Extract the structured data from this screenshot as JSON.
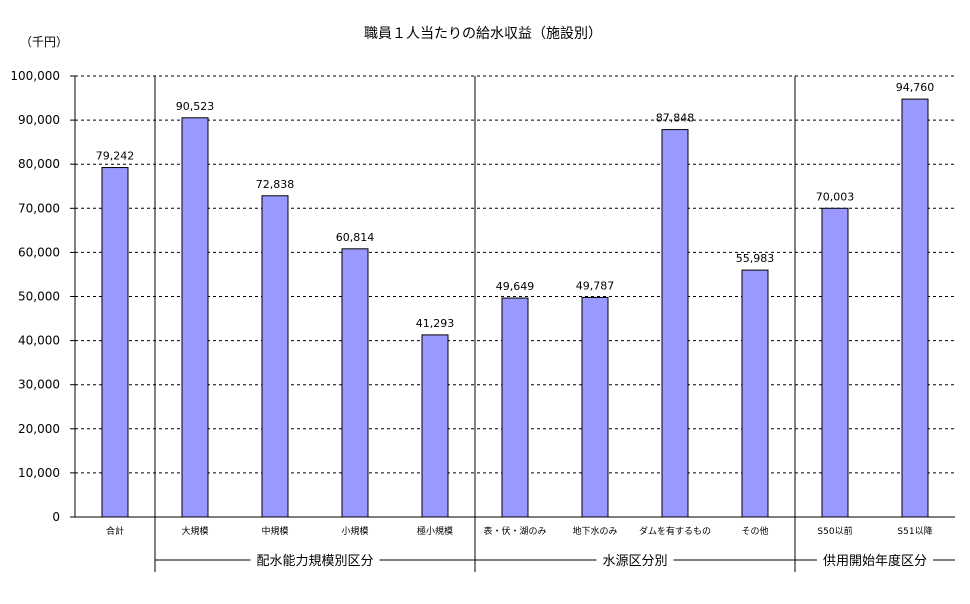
{
  "chart_data": {
    "type": "bar",
    "title": "職員１人当たりの給水収益（施設別）",
    "unit_label": "（千円）",
    "ylim": [
      0,
      100000
    ],
    "y_ticks": [
      "0",
      "10,000",
      "20,000",
      "30,000",
      "40,000",
      "50,000",
      "60,000",
      "70,000",
      "80,000",
      "90,000",
      "100,000"
    ],
    "grid": "horizontal dashed",
    "categories": [
      "合計",
      "大規模",
      "中規模",
      "小規模",
      "極小規模",
      "表・伏・湖のみ",
      "地下水のみ",
      "ダムを有するもの",
      "その他",
      "S50以前",
      "S51以降"
    ],
    "values": [
      79242,
      90523,
      72838,
      60814,
      41293,
      49649,
      49787,
      87848,
      55983,
      70003,
      94760
    ],
    "value_labels": [
      "79,242",
      "90,523",
      "72,838",
      "60,814",
      "41,293",
      "49,649",
      "49,787",
      "87,848",
      "55,983",
      "70,003",
      "94,760"
    ],
    "groups": [
      {
        "label": "配水能力規模別区分",
        "start": 1,
        "end": 4
      },
      {
        "label": "水源区分別",
        "start": 5,
        "end": 8
      },
      {
        "label": "供用開始年度区分",
        "start": 9,
        "end": 10
      }
    ],
    "colors": {
      "bar": "#9999ff",
      "bar_border": "#000000"
    }
  }
}
